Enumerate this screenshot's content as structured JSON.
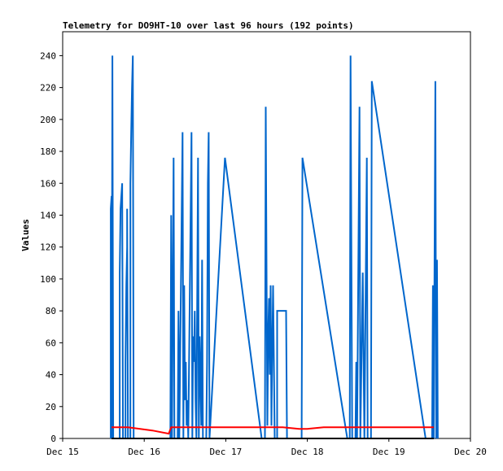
{
  "chart_data": {
    "type": "line",
    "title": "Telemetry for DO9HT-10 over last 96 hours (192 points)",
    "xlabel": "",
    "ylabel": "Values",
    "xlim": [
      "2023-12-15",
      "2023-12-20"
    ],
    "ylim": [
      0,
      255
    ],
    "x_ticks": [
      "Dec 15",
      "Dec 16",
      "Dec 17",
      "Dec 18",
      "Dec 19",
      "Dec 20"
    ],
    "y_ticks": [
      0,
      20,
      40,
      60,
      80,
      100,
      120,
      140,
      160,
      180,
      200,
      220,
      240
    ],
    "grid": false,
    "legend": "none",
    "series": [
      {
        "color": "#0066cc",
        "points": [
          [
            15.59,
            0
          ],
          [
            15.59,
            144
          ],
          [
            15.6,
            152
          ],
          [
            15.6,
            0
          ],
          [
            15.61,
            240
          ],
          [
            15.62,
            0
          ],
          [
            15.7,
            0
          ],
          [
            15.7,
            104
          ],
          [
            15.71,
            144
          ],
          [
            15.72,
            152
          ],
          [
            15.73,
            160
          ],
          [
            15.74,
            0
          ],
          [
            15.77,
            0
          ],
          [
            15.77,
            48
          ],
          [
            15.78,
            96
          ],
          [
            15.79,
            120
          ],
          [
            15.79,
            144
          ],
          [
            15.8,
            0
          ],
          [
            15.83,
            0
          ],
          [
            15.83,
            160
          ],
          [
            15.84,
            192
          ],
          [
            15.85,
            220
          ],
          [
            15.86,
            240
          ],
          [
            15.87,
            0
          ],
          [
            16.32,
            0
          ],
          [
            16.33,
            140
          ],
          [
            16.34,
            0
          ],
          [
            16.36,
            176
          ],
          [
            16.37,
            0
          ],
          [
            16.41,
            0
          ],
          [
            16.42,
            80
          ],
          [
            16.43,
            0
          ],
          [
            16.47,
            192
          ],
          [
            16.48,
            0
          ],
          [
            16.49,
            96
          ],
          [
            16.5,
            24
          ],
          [
            16.51,
            48
          ],
          [
            16.52,
            8
          ],
          [
            16.53,
            24
          ],
          [
            16.54,
            0
          ],
          [
            16.58,
            192
          ],
          [
            16.59,
            0
          ],
          [
            16.6,
            64
          ],
          [
            16.61,
            48
          ],
          [
            16.62,
            80
          ],
          [
            16.63,
            24
          ],
          [
            16.64,
            0
          ],
          [
            16.66,
            176
          ],
          [
            16.67,
            0
          ],
          [
            16.68,
            64
          ],
          [
            16.69,
            40
          ],
          [
            16.7,
            8
          ],
          [
            16.71,
            112
          ],
          [
            16.72,
            0
          ],
          [
            16.76,
            0
          ],
          [
            16.77,
            48
          ],
          [
            16.78,
            160
          ],
          [
            16.79,
            192
          ],
          [
            16.8,
            0
          ],
          [
            16.99,
            176
          ],
          [
            17.44,
            0
          ],
          [
            17.48,
            0
          ],
          [
            17.49,
            208
          ],
          [
            17.5,
            104
          ],
          [
            17.51,
            8
          ],
          [
            17.52,
            64
          ],
          [
            17.53,
            88
          ],
          [
            17.54,
            40
          ],
          [
            17.55,
            96
          ],
          [
            17.56,
            8
          ],
          [
            17.57,
            56
          ],
          [
            17.58,
            96
          ],
          [
            17.6,
            0
          ],
          [
            17.63,
            0
          ],
          [
            17.63,
            80
          ],
          [
            17.74,
            80
          ],
          [
            17.75,
            0
          ],
          [
            17.93,
            0
          ],
          [
            17.94,
            176
          ],
          [
            18.49,
            0
          ],
          [
            18.52,
            0
          ],
          [
            18.53,
            240
          ],
          [
            18.55,
            0
          ],
          [
            18.59,
            0
          ],
          [
            18.6,
            48
          ],
          [
            18.61,
            0
          ],
          [
            18.64,
            208
          ],
          [
            18.65,
            0
          ],
          [
            18.68,
            104
          ],
          [
            18.69,
            48
          ],
          [
            18.7,
            0
          ],
          [
            18.73,
            176
          ],
          [
            18.74,
            0
          ],
          [
            18.78,
            0
          ],
          [
            18.79,
            224
          ],
          [
            19.45,
            0
          ],
          [
            19.53,
            0
          ],
          [
            19.54,
            96
          ],
          [
            19.55,
            0
          ],
          [
            19.57,
            224
          ],
          [
            19.58,
            0
          ],
          [
            19.59,
            112
          ],
          [
            19.6,
            0
          ]
        ]
      },
      {
        "color": "#ff0000",
        "points": [
          [
            15.6,
            7
          ],
          [
            15.8,
            7
          ],
          [
            15.95,
            6
          ],
          [
            16.1,
            5
          ],
          [
            16.3,
            3
          ],
          [
            16.33,
            7
          ],
          [
            16.6,
            7
          ],
          [
            16.8,
            7
          ],
          [
            17.0,
            7
          ],
          [
            17.2,
            7
          ],
          [
            17.5,
            7
          ],
          [
            17.7,
            7
          ],
          [
            17.9,
            6
          ],
          [
            18.0,
            6
          ],
          [
            18.2,
            7
          ],
          [
            18.4,
            7
          ],
          [
            18.6,
            7
          ],
          [
            18.8,
            7
          ],
          [
            19.0,
            7
          ],
          [
            19.3,
            7
          ],
          [
            19.55,
            7
          ]
        ]
      },
      {
        "color": "#000000",
        "points": [
          [
            15.6,
            0
          ],
          [
            19.55,
            0
          ]
        ]
      }
    ]
  }
}
